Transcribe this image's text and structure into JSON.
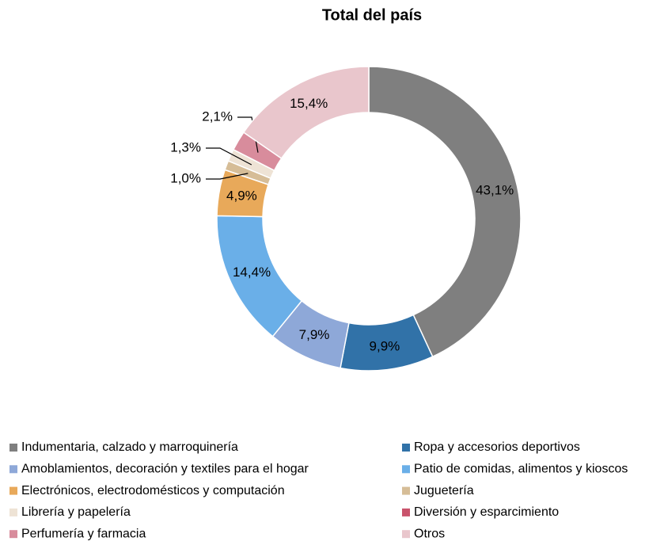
{
  "chart_data": {
    "type": "donut",
    "title": "Total del país",
    "categories": [
      "Indumentaria, calzado y marroquinería",
      "Ropa y accesorios deportivos",
      "Amoblamientos, decoración y textiles para el hogar",
      "Patio de comidas, alimentos y kioscos",
      "Electrónicos, electrodomésticos y computación",
      "Juguetería",
      "Librería y papelería",
      "Diversión y esparcimiento",
      "Perfumería y farmacia",
      "Otros"
    ],
    "values": [
      43.1,
      9.9,
      7.9,
      14.4,
      4.9,
      1.0,
      1.3,
      0,
      2.1,
      15.4
    ],
    "value_labels": [
      "43,1%",
      "9,9%",
      "7,9%",
      "14,4%",
      "4,9%",
      "1,0%",
      "1,3%",
      null,
      "2,1%",
      "15,4%"
    ],
    "colors": [
      "#7f7f7f",
      "#3172a8",
      "#8ea8d8",
      "#6aafe8",
      "#e8a95a",
      "#d6bd97",
      "#eee3d5",
      "#c9536c",
      "#d88c9c",
      "#e9c6cc"
    ]
  }
}
